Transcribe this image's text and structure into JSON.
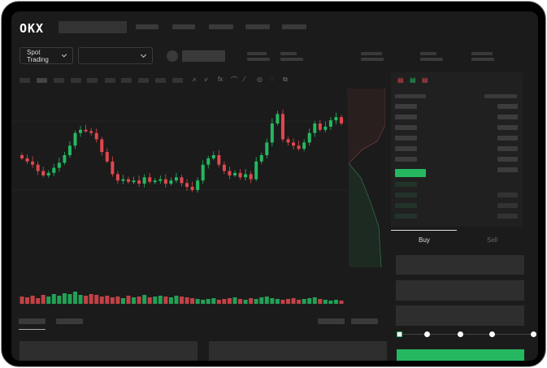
{
  "header": {
    "logo": "OKX"
  },
  "toolbar": {
    "market_dropdown": "Spot Trading"
  },
  "order_form": {
    "tabs": [
      {
        "label": "Buy",
        "active": true
      },
      {
        "label": "Sell",
        "active": false
      }
    ],
    "slider_percent": 0
  },
  "colors": {
    "up": "#25b860",
    "down": "#e0484d",
    "background": "#1b1b1b",
    "buy_button": "#25b860"
  },
  "chart_data": {
    "type": "candlestick",
    "title": "",
    "xlabel": "",
    "ylabel": "",
    "close": [
      95,
      90,
      85,
      75,
      68,
      72,
      80,
      88,
      100,
      115,
      135,
      140,
      138,
      135,
      125,
      105,
      90,
      70,
      60,
      62,
      58,
      60,
      55,
      65,
      58,
      60,
      62,
      55,
      60,
      65,
      56,
      50,
      45,
      60,
      85,
      95,
      100,
      85,
      75,
      68,
      72,
      65,
      70,
      62,
      90,
      100,
      120,
      150,
      165,
      125,
      120,
      115,
      110,
      120,
      135,
      150,
      140,
      145,
      155,
      160,
      150
    ],
    "open_first": 100,
    "volume": [
      12,
      11,
      13,
      10,
      14,
      12,
      15,
      13,
      16,
      15,
      18,
      14,
      13,
      15,
      14,
      12,
      13,
      11,
      12,
      10,
      13,
      11,
      12,
      14,
      11,
      12,
      13,
      12,
      11,
      13,
      12,
      11,
      10,
      9,
      8,
      9,
      10,
      8,
      9,
      10,
      11,
      9,
      8,
      10,
      9,
      11,
      12,
      10,
      9,
      8,
      9,
      10,
      8,
      9,
      10,
      11,
      9,
      8,
      7,
      8,
      7
    ]
  }
}
